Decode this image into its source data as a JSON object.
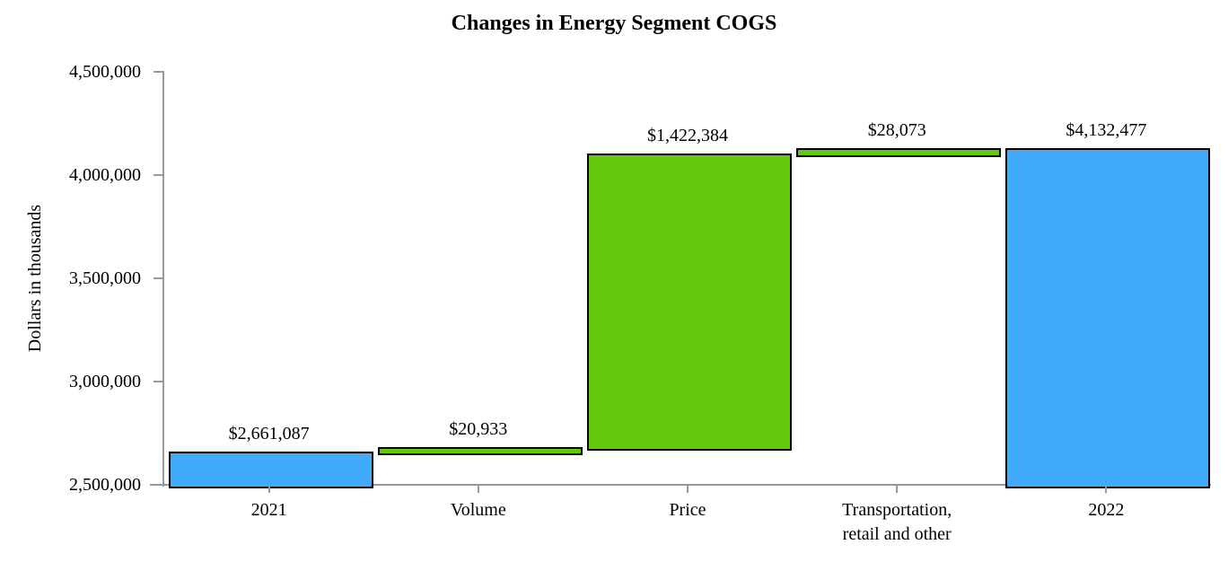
{
  "chart_data": {
    "type": "waterfall-bar",
    "title": "Changes in Energy Segment COGS",
    "ylabel": "Dollars in thousands",
    "xlabel": "",
    "ylim": [
      2500000,
      4500000
    ],
    "ytick_step": 500000,
    "ytick_labels_top_to_bottom": [
      "4,500,000",
      "4,000,000",
      "3,500,000",
      "3,000,000",
      "2,500,000"
    ],
    "grid": false,
    "legend": "none",
    "categories": [
      "2021",
      "Volume",
      "Price",
      "Transportation, retail and other",
      "2022"
    ],
    "bars": [
      {
        "category": "2021",
        "category_lines": [
          "2021"
        ],
        "value": 2661087,
        "value_label": "$2,661,087",
        "start": 2500000,
        "end": 2661087,
        "role": "total",
        "color": "#42AAFB"
      },
      {
        "category": "Volume",
        "category_lines": [
          "Volume"
        ],
        "value": 20933,
        "value_label": "$20,933",
        "start": 2661087,
        "end": 2682020,
        "role": "increase",
        "color": "#64C80C"
      },
      {
        "category": "Price",
        "category_lines": [
          "Price"
        ],
        "value": 1422384,
        "value_label": "$1,422,384",
        "start": 2682020,
        "end": 4104404,
        "role": "increase",
        "color": "#64C80C"
      },
      {
        "category": "Transportation, retail and other",
        "category_lines": [
          "Transportation,",
          "retail and other"
        ],
        "value": 28073,
        "value_label": "$28,073",
        "start": 4104404,
        "end": 4132477,
        "role": "increase",
        "color": "#64C80C"
      },
      {
        "category": "2022",
        "category_lines": [
          "2022"
        ],
        "value": 4132477,
        "value_label": "$4,132,477",
        "start": 2500000,
        "end": 4132477,
        "role": "total",
        "color": "#42AAFB"
      }
    ],
    "colors": {
      "total_bar": "#42AAFB",
      "change_bar": "#64C80C",
      "bar_border": "#000000",
      "axis": "#999999",
      "text": "#000000",
      "background": "#FFFFFF"
    }
  }
}
